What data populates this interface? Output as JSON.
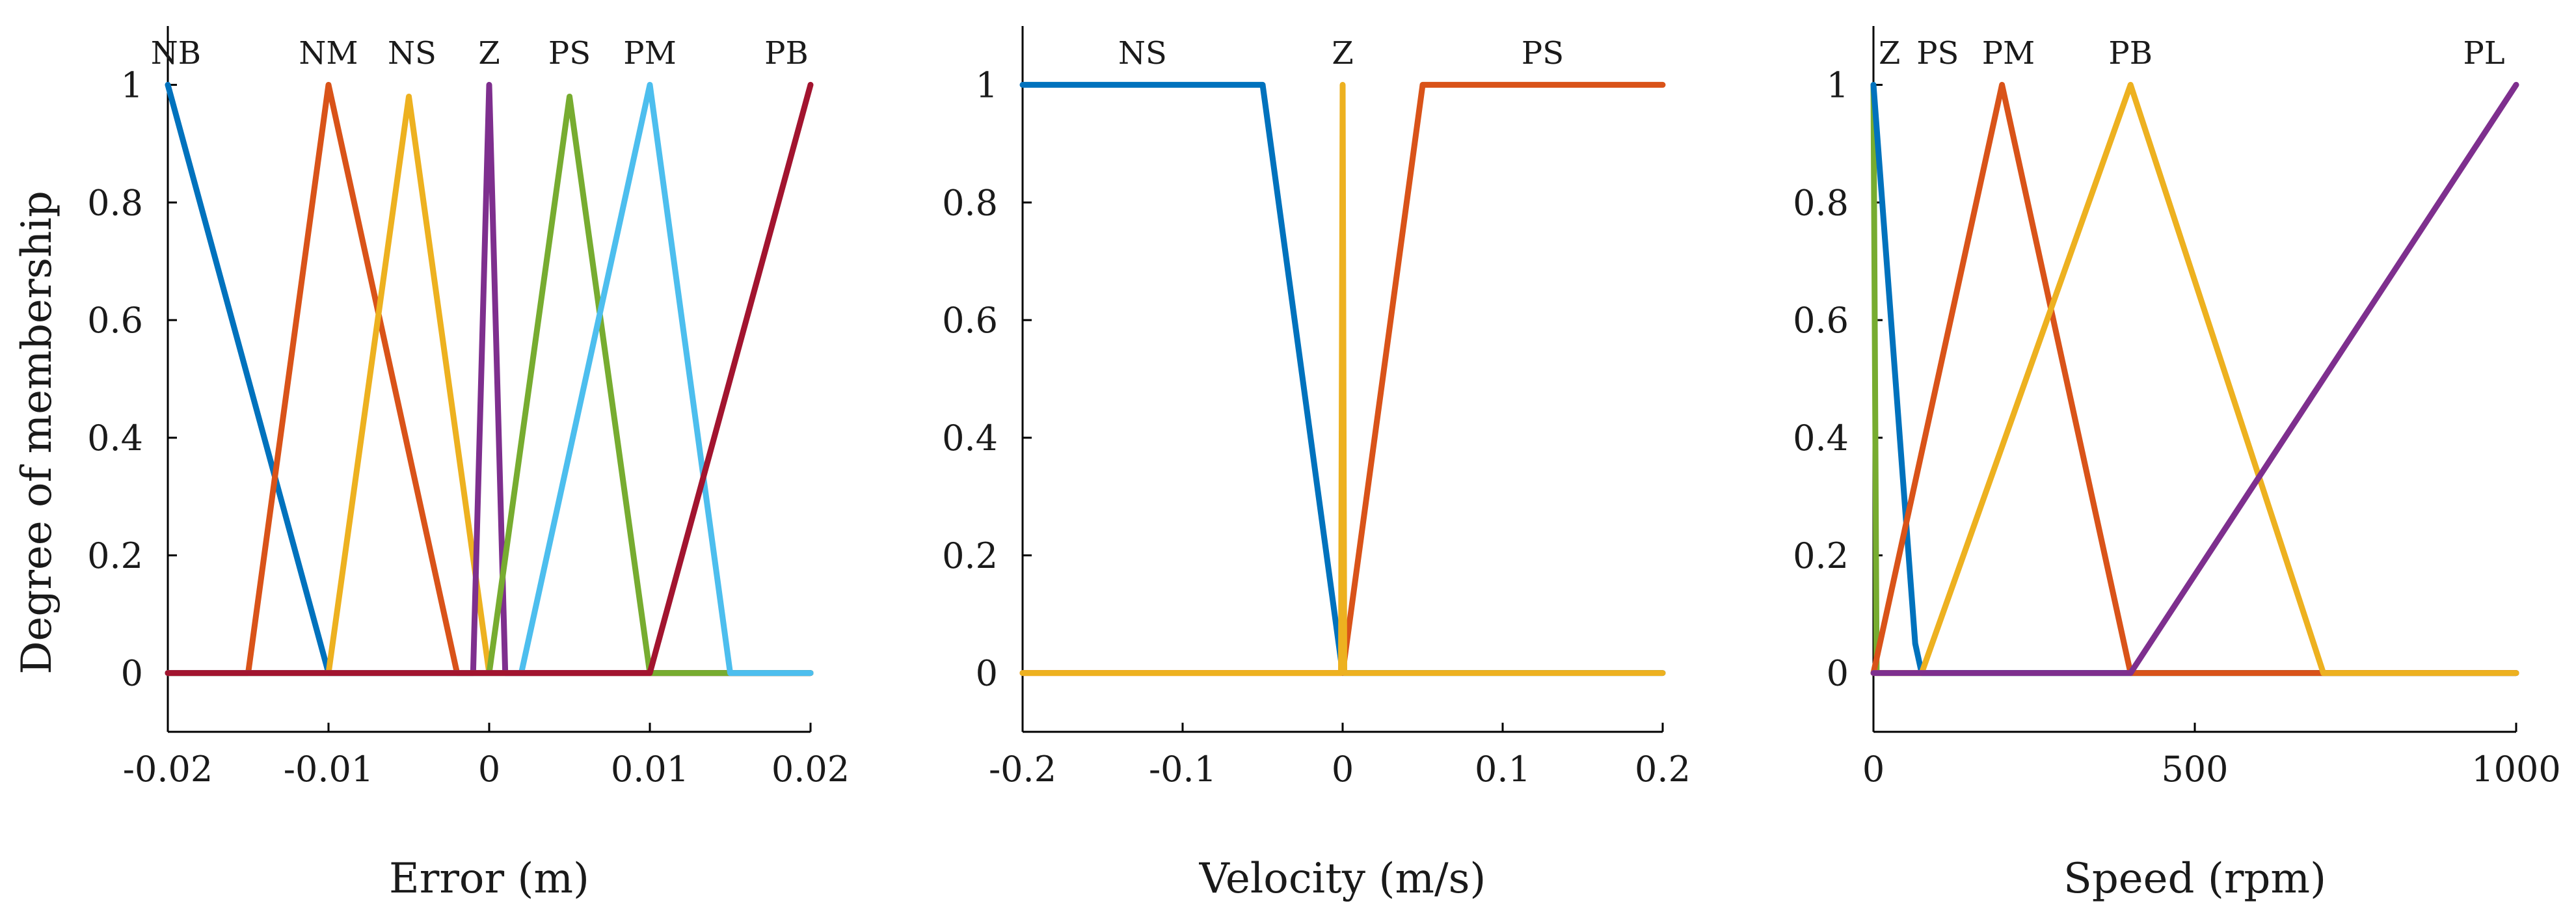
{
  "figure": {
    "ylabel": "Degree of membership"
  },
  "chart_data": [
    {
      "type": "line",
      "title": "",
      "xlabel": "Error (m)",
      "ylabel": "Degree of membership",
      "xlim": [
        -0.02,
        0.02
      ],
      "ylim": [
        -0.1,
        1.1
      ],
      "xticks": [
        -0.02,
        -0.01,
        0,
        0.01,
        0.02
      ],
      "xtick_labels": [
        "-0.02",
        "-0.01",
        "0",
        "0.01",
        "0.02"
      ],
      "yticks": [
        0,
        0.2,
        0.4,
        0.6,
        0.8,
        1
      ],
      "ytick_labels": [
        "0",
        "0.2",
        "0.4",
        "0.6",
        "0.8",
        "1"
      ],
      "grid": false,
      "series": [
        {
          "name": "NB",
          "color": "#0072BD",
          "x": [
            -0.02,
            -0.01,
            0.02
          ],
          "y": [
            1,
            0,
            0
          ]
        },
        {
          "name": "NM",
          "color": "#D95319",
          "x": [
            -0.02,
            -0.015,
            -0.01,
            -0.002,
            0.02
          ],
          "y": [
            0,
            0,
            1,
            0,
            0
          ]
        },
        {
          "name": "NS",
          "color": "#EDB120",
          "x": [
            -0.02,
            -0.01,
            -0.005,
            0,
            0.02
          ],
          "y": [
            0,
            0,
            0.98,
            0,
            0
          ]
        },
        {
          "name": "Z",
          "color": "#7E2F8E",
          "x": [
            -0.02,
            -0.001,
            0,
            0.001,
            0.02
          ],
          "y": [
            0,
            0,
            1,
            0,
            0
          ]
        },
        {
          "name": "PS",
          "color": "#77AC30",
          "x": [
            -0.02,
            0,
            0.005,
            0.01,
            0.02
          ],
          "y": [
            0,
            0,
            0.98,
            0,
            0
          ]
        },
        {
          "name": "PM",
          "color": "#4DBEEE",
          "x": [
            -0.02,
            0.002,
            0.01,
            0.015,
            0.02
          ],
          "y": [
            0,
            0,
            1,
            0,
            0
          ]
        },
        {
          "name": "PB",
          "color": "#A2142F",
          "x": [
            -0.02,
            0.01,
            0.02
          ],
          "y": [
            0,
            0,
            1
          ]
        }
      ],
      "mf_labels": [
        {
          "text": "NB",
          "x": -0.0195
        },
        {
          "text": "NM",
          "x": -0.01
        },
        {
          "text": "NS",
          "x": -0.0048
        },
        {
          "text": "Z",
          "x": 0
        },
        {
          "text": "PS",
          "x": 0.005
        },
        {
          "text": "PM",
          "x": 0.01
        },
        {
          "text": "PB",
          "x": 0.0185
        }
      ]
    },
    {
      "type": "line",
      "title": "",
      "xlabel": "Velocity (m/s)",
      "ylabel": "",
      "xlim": [
        -0.2,
        0.2
      ],
      "ylim": [
        -0.1,
        1.1
      ],
      "xticks": [
        -0.2,
        -0.1,
        0,
        0.1,
        0.2
      ],
      "xtick_labels": [
        "-0.2",
        "-0.1",
        "0",
        "0.1",
        "0.2"
      ],
      "yticks": [
        0,
        0.2,
        0.4,
        0.6,
        0.8,
        1
      ],
      "ytick_labels": [
        "0",
        "0.2",
        "0.4",
        "0.6",
        "0.8",
        "1"
      ],
      "grid": false,
      "series": [
        {
          "name": "NS",
          "color": "#0072BD",
          "x": [
            -0.2,
            -0.05,
            0,
            0.2
          ],
          "y": [
            1,
            1,
            0,
            0
          ]
        },
        {
          "name": "PS",
          "color": "#D95319",
          "x": [
            -0.2,
            0,
            0.05,
            0.2
          ],
          "y": [
            0,
            0,
            1,
            1
          ]
        },
        {
          "name": "Z",
          "color": "#EDB120",
          "x": [
            -0.2,
            -0.001,
            0,
            0.001,
            0.2
          ],
          "y": [
            0,
            0,
            1,
            0,
            0
          ]
        }
      ],
      "mf_labels": [
        {
          "text": "NS",
          "x": -0.125
        },
        {
          "text": "Z",
          "x": 0
        },
        {
          "text": "PS",
          "x": 0.125
        }
      ]
    },
    {
      "type": "line",
      "title": "",
      "xlabel": "Speed (rpm)",
      "ylabel": "",
      "xlim": [
        0,
        1000
      ],
      "ylim": [
        -0.1,
        1.1
      ],
      "xticks": [
        0,
        500,
        1000
      ],
      "xtick_labels": [
        "0",
        "500",
        "1000"
      ],
      "yticks": [
        0,
        0.2,
        0.4,
        0.6,
        0.8,
        1
      ],
      "ytick_labels": [
        "0",
        "0.2",
        "0.4",
        "0.6",
        "0.8",
        "1"
      ],
      "grid": false,
      "series": [
        {
          "name": "Z",
          "color": "#77AC30",
          "x": [
            0,
            5,
            1000
          ],
          "y": [
            1,
            0,
            0
          ]
        },
        {
          "name": "PS",
          "color": "#0072BD",
          "x": [
            0,
            65,
            75,
            1000
          ],
          "y": [
            1,
            0.05,
            0,
            0
          ]
        },
        {
          "name": "PM",
          "color": "#D95319",
          "x": [
            0,
            200,
            400,
            1000
          ],
          "y": [
            0,
            1,
            0,
            0
          ]
        },
        {
          "name": "PB",
          "color": "#EDB120",
          "x": [
            0,
            75,
            400,
            700,
            1000
          ],
          "y": [
            0,
            0,
            1,
            0,
            0
          ]
        },
        {
          "name": "PL",
          "color": "#7E2F8E",
          "x": [
            0,
            400,
            1000
          ],
          "y": [
            0,
            0,
            1
          ]
        }
      ],
      "mf_labels": [
        {
          "text": "Z",
          "x": 25
        },
        {
          "text": "PS",
          "x": 100
        },
        {
          "text": "PM",
          "x": 210
        },
        {
          "text": "PB",
          "x": 400
        },
        {
          "text": "PL",
          "x": 950
        }
      ]
    }
  ]
}
